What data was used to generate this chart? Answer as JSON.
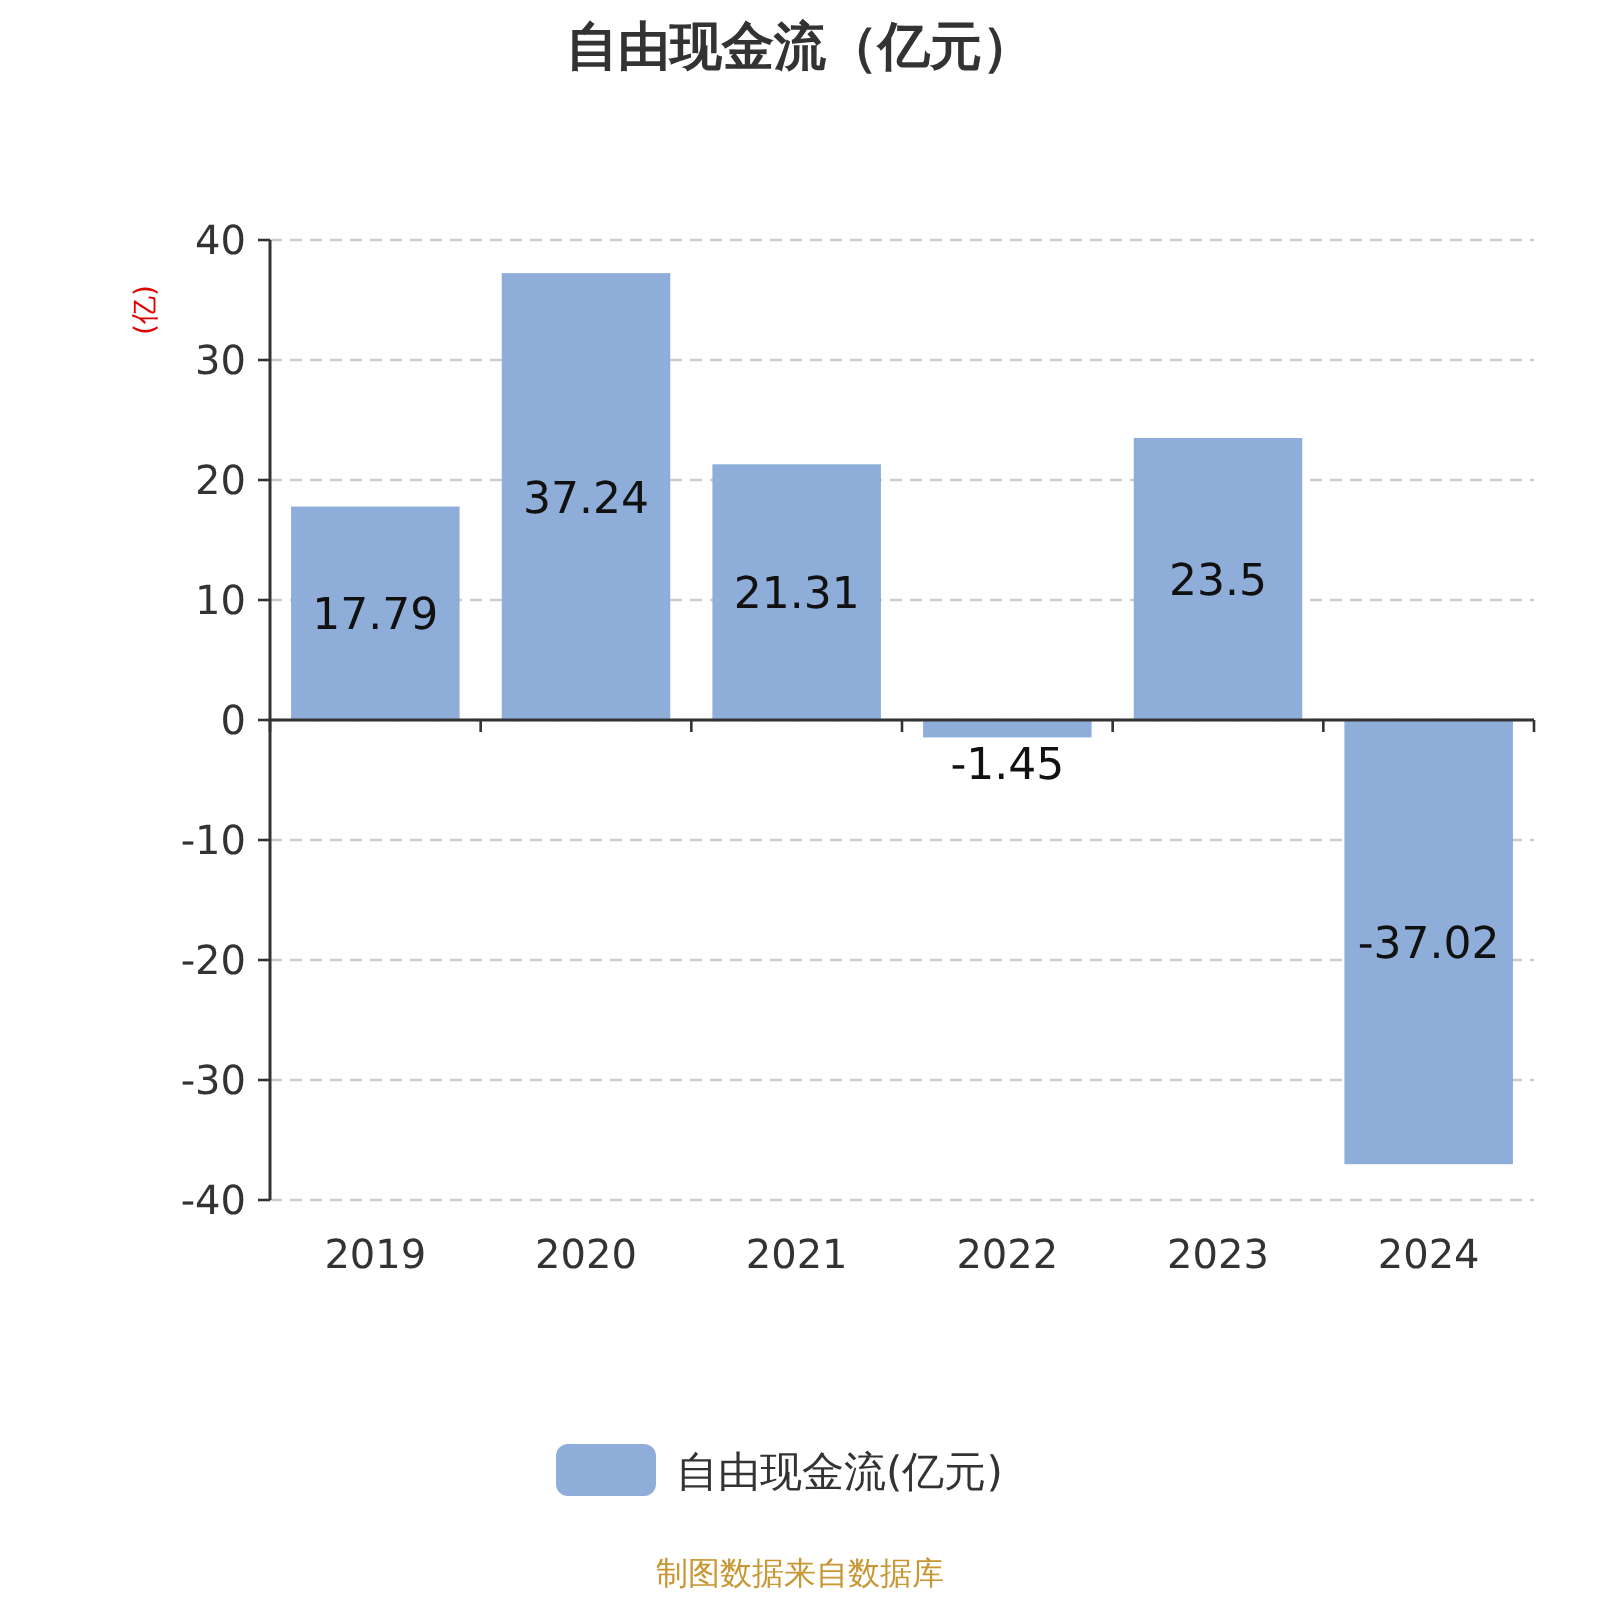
{
  "chart_data": {
    "type": "bar",
    "title": "自由现金流（亿元）",
    "ylabel": "(亿)",
    "categories": [
      "2019",
      "2020",
      "2021",
      "2022",
      "2023",
      "2024"
    ],
    "series": [
      {
        "name": "自由现金流(亿元)",
        "color": "#8eaed9",
        "values": [
          17.79,
          37.24,
          21.31,
          -1.45,
          23.5,
          -37.02
        ]
      }
    ],
    "ylim": [
      -40,
      40
    ],
    "yticks": [
      -40,
      -30,
      -20,
      -10,
      0,
      10,
      20,
      30,
      40
    ],
    "grid": "y",
    "legend": "bottom",
    "data_labels": true,
    "annotations": [
      "制图数据来自数据库"
    ]
  }
}
